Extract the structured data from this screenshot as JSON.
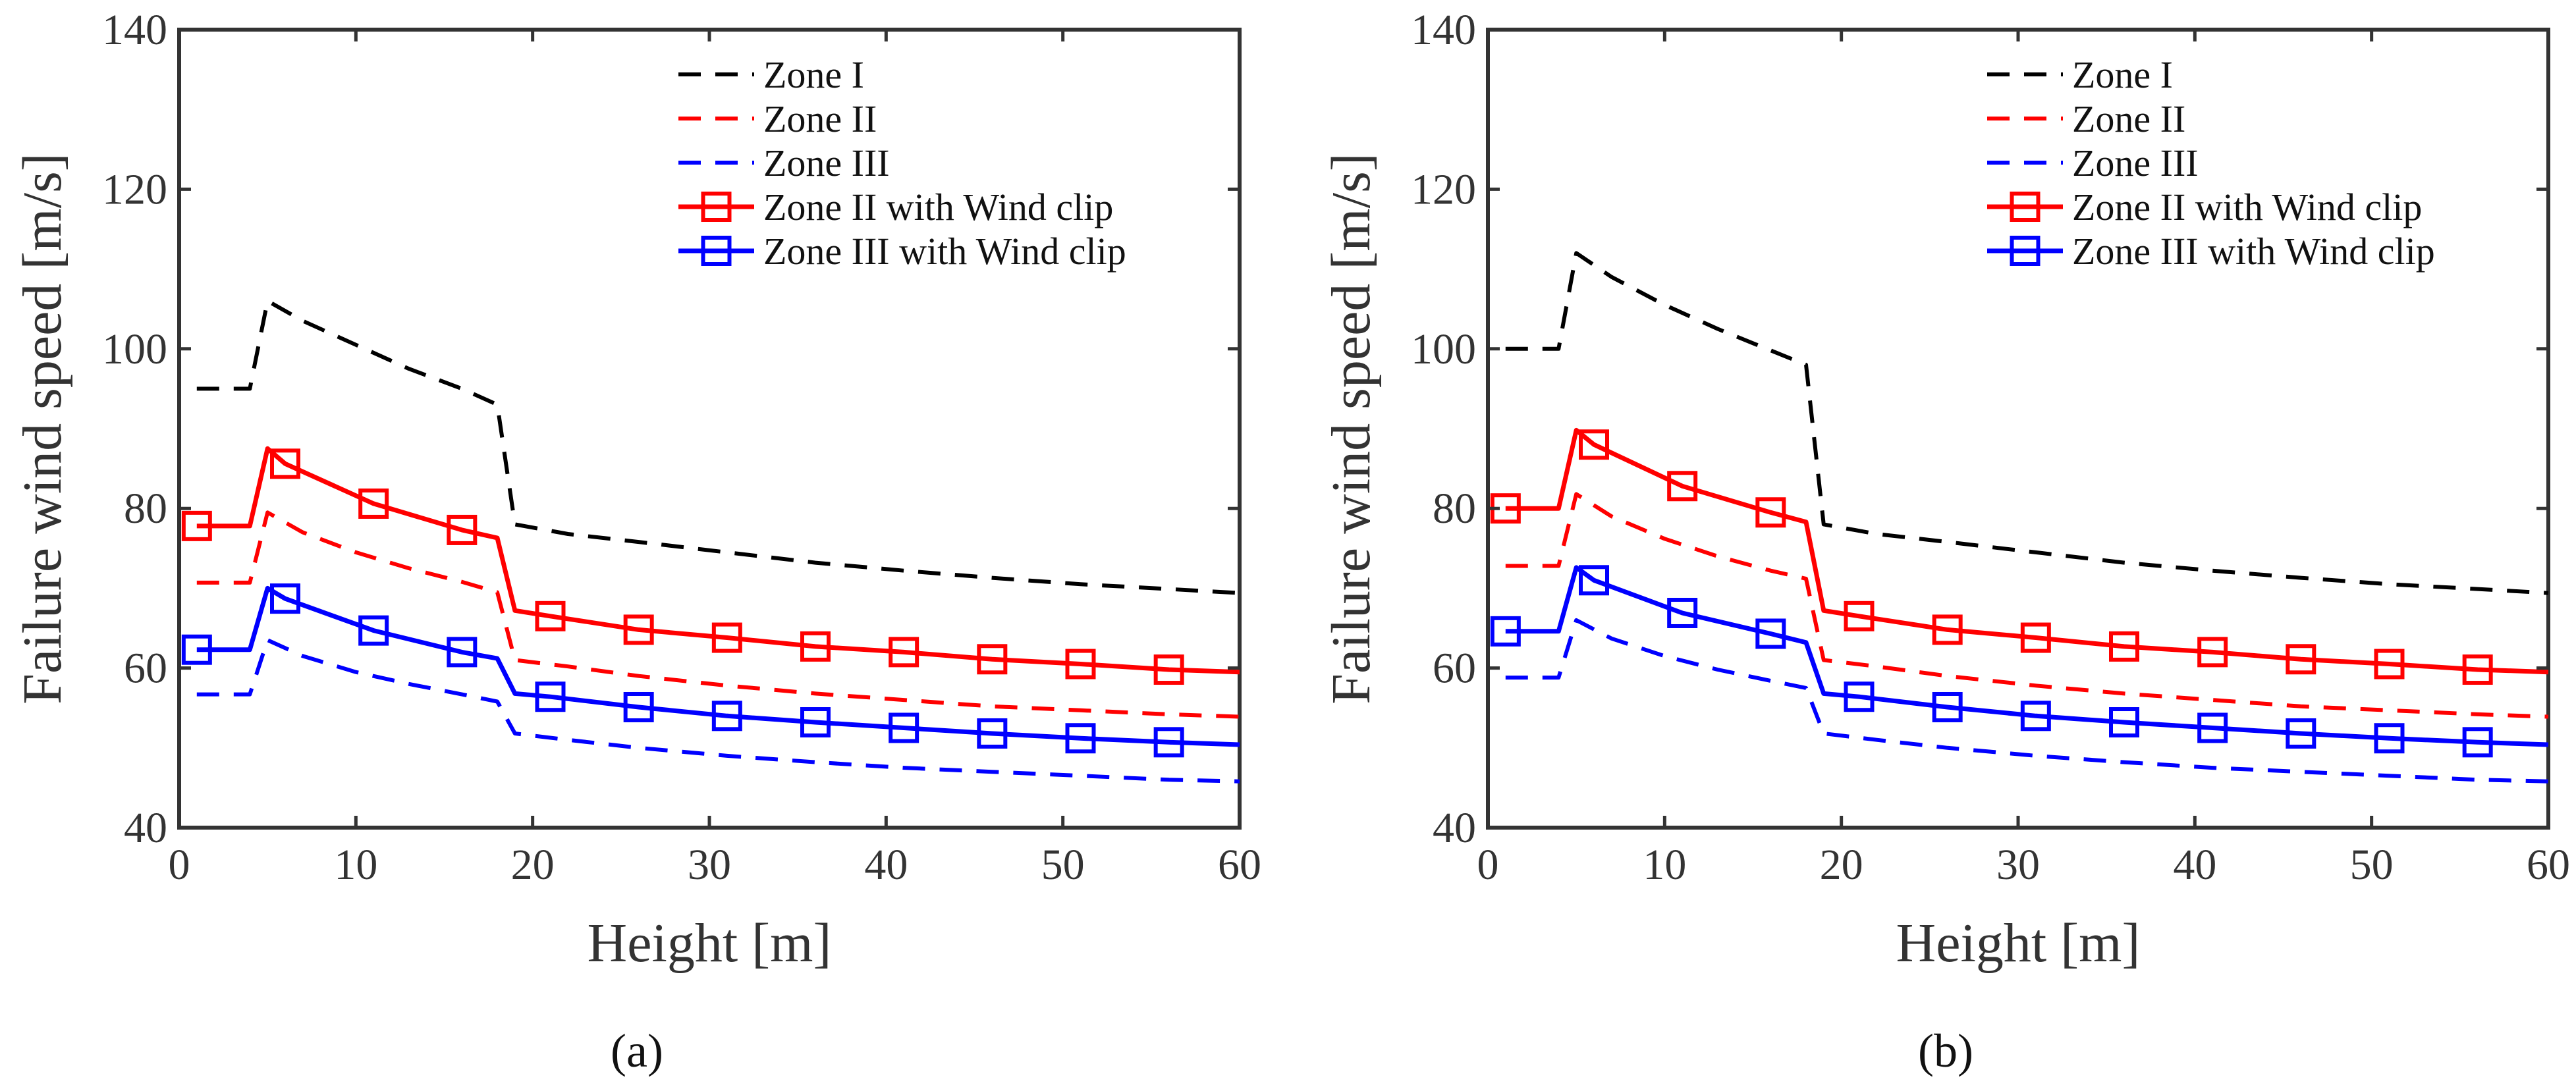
{
  "colors": {
    "zone_i": "#000000",
    "zone_ii": "#ff0000",
    "zone_iii": "#0000ff",
    "axis": "#333333",
    "background": "#ffffff"
  },
  "chart_data": [
    {
      "type": "line",
      "panel_label": "(a)",
      "xlabel": "Height [m]",
      "ylabel": "Failure wind speed [m/s]",
      "xlim": [
        0,
        60
      ],
      "ylim": [
        40,
        140
      ],
      "xticks": [
        0,
        10,
        20,
        30,
        40,
        50,
        60
      ],
      "yticks": [
        40,
        60,
        80,
        100,
        120,
        140
      ],
      "grid": false,
      "legend_position": "top-right",
      "series": [
        {
          "name": "Zone I",
          "color": "#000000",
          "style": "dashed",
          "marker": "none",
          "x": [
            1,
            4,
            5,
            7,
            10,
            13,
            16,
            18,
            19,
            22,
            26,
            31,
            36,
            41,
            46,
            51,
            56,
            60
          ],
          "y": [
            95,
            95,
            106,
            103.5,
            100.5,
            97.5,
            95.0,
            93,
            78,
            76.8,
            75.8,
            74.5,
            73.2,
            72.2,
            71.3,
            70.5,
            69.9,
            69.4
          ]
        },
        {
          "name": "Zone II",
          "color": "#ff0000",
          "style": "dashed",
          "marker": "none",
          "x": [
            1,
            4,
            5,
            7,
            10,
            13,
            16,
            18,
            19,
            22,
            26,
            31,
            36,
            41,
            46,
            51,
            56,
            60
          ],
          "y": [
            70.7,
            70.7,
            79.5,
            77.0,
            74.5,
            72.5,
            70.8,
            69.5,
            61,
            60.2,
            59.0,
            57.8,
            56.8,
            56.0,
            55.2,
            54.7,
            54.2,
            53.9
          ]
        },
        {
          "name": "Zone III",
          "color": "#0000ff",
          "style": "dashed",
          "marker": "none",
          "x": [
            1,
            4,
            5,
            7,
            10,
            13,
            16,
            18,
            19,
            22,
            26,
            31,
            36,
            41,
            46,
            51,
            56,
            60
          ],
          "y": [
            56.7,
            56.7,
            63.5,
            61.5,
            59.5,
            58.0,
            56.7,
            55.8,
            51.8,
            51.0,
            50.0,
            49.0,
            48.2,
            47.5,
            47.0,
            46.5,
            46.0,
            45.8
          ]
        },
        {
          "name": "Zone II with Wind clip",
          "color": "#ff0000",
          "style": "solid",
          "marker": "square",
          "x": [
            1,
            4,
            5,
            6,
            11,
            16,
            18,
            19,
            21,
            26,
            31,
            36,
            41,
            46,
            51,
            56,
            60
          ],
          "y": [
            77.8,
            77.8,
            87.5,
            85.6,
            80.6,
            77.3,
            76.3,
            67.2,
            66.5,
            64.8,
            63.8,
            62.7,
            62.0,
            61.1,
            60.5,
            59.8,
            59.5
          ],
          "marker_x": [
            1,
            6,
            11,
            16,
            21,
            26,
            31,
            36,
            41,
            46,
            51,
            56
          ],
          "marker_y": [
            77.8,
            85.6,
            80.6,
            77.3,
            66.5,
            64.8,
            63.8,
            62.7,
            62.0,
            61.1,
            60.5,
            59.8
          ]
        },
        {
          "name": "Zone III with Wind clip",
          "color": "#0000ff",
          "style": "solid",
          "marker": "square",
          "x": [
            1,
            4,
            5,
            6,
            11,
            16,
            18,
            19,
            21,
            26,
            31,
            36,
            41,
            46,
            51,
            56,
            60
          ],
          "y": [
            62.3,
            62.3,
            70.0,
            68.7,
            64.7,
            62.0,
            61.2,
            56.8,
            56.4,
            55.1,
            54.0,
            53.2,
            52.5,
            51.8,
            51.2,
            50.7,
            50.4
          ],
          "marker_x": [
            1,
            6,
            11,
            16,
            21,
            26,
            31,
            36,
            41,
            46,
            51,
            56
          ],
          "marker_y": [
            62.3,
            68.7,
            64.7,
            62.0,
            56.4,
            55.1,
            54.0,
            53.2,
            52.5,
            51.8,
            51.2,
            50.7
          ]
        }
      ]
    },
    {
      "type": "line",
      "panel_label": "(b)",
      "xlabel": "Height [m]",
      "ylabel": "Failure wind speed [m/s]",
      "xlim": [
        0,
        60
      ],
      "ylim": [
        40,
        140
      ],
      "xticks": [
        0,
        10,
        20,
        30,
        40,
        50,
        60
      ],
      "yticks": [
        40,
        60,
        80,
        100,
        120,
        140
      ],
      "grid": false,
      "legend_position": "top-right",
      "series": [
        {
          "name": "Zone I",
          "color": "#000000",
          "style": "dashed",
          "marker": "none",
          "x": [
            1,
            4,
            5,
            7,
            10,
            13,
            16,
            18,
            19,
            22,
            26,
            31,
            36,
            41,
            46,
            51,
            56,
            60
          ],
          "y": [
            100,
            100,
            112,
            109,
            105.5,
            102.5,
            99.8,
            98,
            78,
            76.8,
            75.8,
            74.5,
            73.2,
            72.2,
            71.3,
            70.5,
            69.9,
            69.4
          ]
        },
        {
          "name": "Zone II",
          "color": "#ff0000",
          "style": "dashed",
          "marker": "none",
          "x": [
            1,
            4,
            5,
            7,
            10,
            13,
            16,
            18,
            19,
            22,
            26,
            31,
            36,
            41,
            46,
            51,
            56,
            60
          ],
          "y": [
            72.8,
            72.8,
            81.8,
            79.0,
            76.2,
            74.0,
            72.2,
            71.2,
            61,
            60.2,
            59.0,
            57.8,
            56.8,
            56.0,
            55.2,
            54.7,
            54.2,
            53.9
          ]
        },
        {
          "name": "Zone III",
          "color": "#0000ff",
          "style": "dashed",
          "marker": "none",
          "x": [
            1,
            4,
            5,
            7,
            10,
            13,
            16,
            18,
            19,
            22,
            26,
            31,
            36,
            41,
            46,
            51,
            56,
            60
          ],
          "y": [
            58.8,
            58.8,
            66.0,
            63.7,
            61.5,
            59.8,
            58.4,
            57.5,
            51.8,
            51.0,
            50.0,
            49.0,
            48.2,
            47.5,
            47.0,
            46.5,
            46.0,
            45.8
          ]
        },
        {
          "name": "Zone II with Wind clip",
          "color": "#ff0000",
          "style": "solid",
          "marker": "square",
          "x": [
            1,
            4,
            5,
            6,
            11,
            16,
            18,
            19,
            21,
            26,
            31,
            36,
            41,
            46,
            51,
            56,
            60
          ],
          "y": [
            80.0,
            80.0,
            89.8,
            88.0,
            82.8,
            79.5,
            78.3,
            67.2,
            66.5,
            64.8,
            63.8,
            62.7,
            62.0,
            61.1,
            60.5,
            59.8,
            59.5
          ],
          "marker_x": [
            1,
            6,
            11,
            16,
            21,
            26,
            31,
            36,
            41,
            46,
            51,
            56
          ],
          "marker_y": [
            80.0,
            88.0,
            82.8,
            79.5,
            66.5,
            64.8,
            63.8,
            62.7,
            62.0,
            61.1,
            60.5,
            59.8
          ]
        },
        {
          "name": "Zone III with Wind clip",
          "color": "#0000ff",
          "style": "solid",
          "marker": "square",
          "x": [
            1,
            4,
            5,
            6,
            11,
            16,
            18,
            19,
            21,
            26,
            31,
            36,
            41,
            46,
            51,
            56,
            60
          ],
          "y": [
            64.6,
            64.6,
            72.6,
            71.0,
            66.9,
            64.3,
            63.2,
            56.8,
            56.4,
            55.1,
            54.0,
            53.2,
            52.5,
            51.8,
            51.2,
            50.7,
            50.4
          ],
          "marker_x": [
            1,
            6,
            11,
            16,
            21,
            26,
            31,
            36,
            41,
            46,
            51,
            56
          ],
          "marker_y": [
            64.6,
            71.0,
            66.9,
            64.3,
            56.4,
            55.1,
            54.0,
            53.2,
            52.5,
            51.8,
            51.2,
            50.7
          ]
        }
      ]
    }
  ]
}
